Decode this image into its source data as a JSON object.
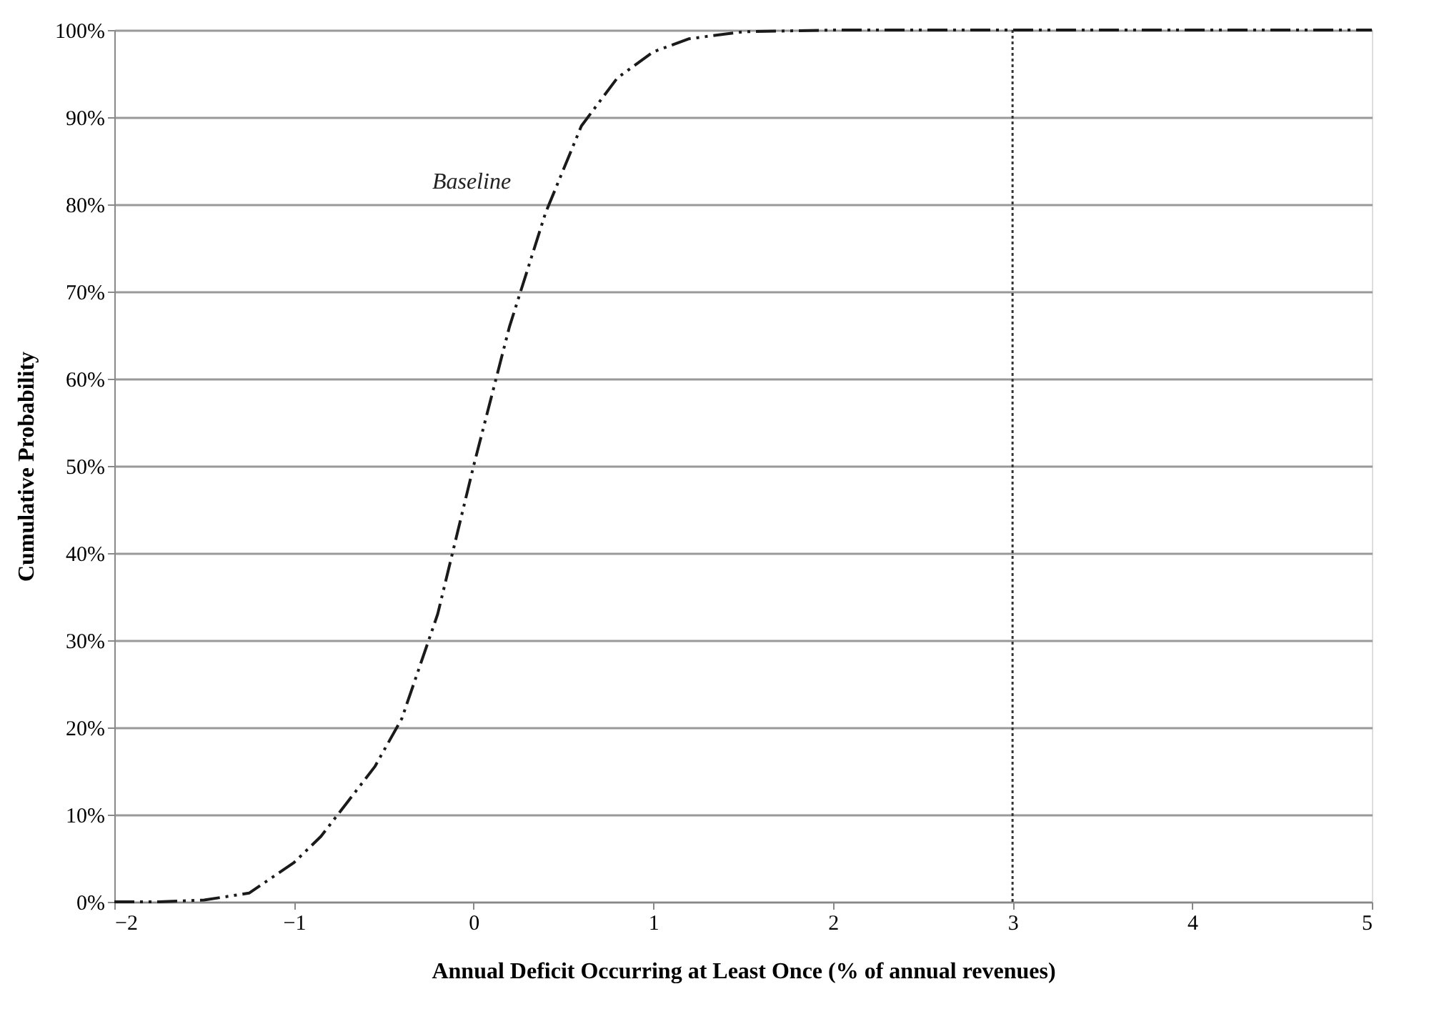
{
  "chart_data": {
    "type": "line",
    "xlabel": "Annual Deficit Occurring at Least Once (% of annual revenues)",
    "ylabel": "Cumulative Probability",
    "x": [
      -2,
      -1.75,
      -1.5,
      -1.25,
      -1,
      -0.85,
      -0.7,
      -0.55,
      -0.4,
      -0.2,
      0,
      0.2,
      0.4,
      0.6,
      0.8,
      1.0,
      1.2,
      1.5,
      2,
      3,
      4,
      5
    ],
    "series": [
      {
        "color": "#1a1a1a",
        "values": [
          0,
          0,
          0.2,
          1,
          4.5,
          7.5,
          11.5,
          15.5,
          21,
          33,
          50,
          66,
          79,
          89,
          94.5,
          97.5,
          99,
          99.8,
          100,
          100,
          100,
          100
        ]
      }
    ],
    "xlim": [
      -2,
      5
    ],
    "xticks": [
      {
        "value": -2,
        "label": "−2"
      },
      {
        "value": -1,
        "label": "−1"
      },
      0,
      1,
      2,
      3,
      4,
      5
    ],
    "ylim": [
      0,
      100
    ],
    "yticks": [
      {
        "value": 0,
        "label": "0%"
      },
      {
        "value": 10,
        "label": "10%"
      },
      {
        "value": 20,
        "label": "20%"
      },
      {
        "value": 30,
        "label": "30%"
      },
      {
        "value": 40,
        "label": "40%"
      },
      {
        "value": 50,
        "label": "50%"
      },
      {
        "value": 60,
        "label": "60%"
      },
      {
        "value": 70,
        "label": "70%"
      },
      {
        "value": 80,
        "label": "80%"
      },
      {
        "value": 90,
        "label": "90%"
      },
      {
        "value": 100,
        "label": "100%"
      }
    ],
    "annotations": [
      "Baseline"
    ],
    "ref_lines": [
      {
        "axis": "x",
        "value": 3,
        "color": "#333333",
        "line_style": "dotted"
      }
    ],
    "grid": "y",
    "line_style": "dashed",
    "marker": "none"
  }
}
